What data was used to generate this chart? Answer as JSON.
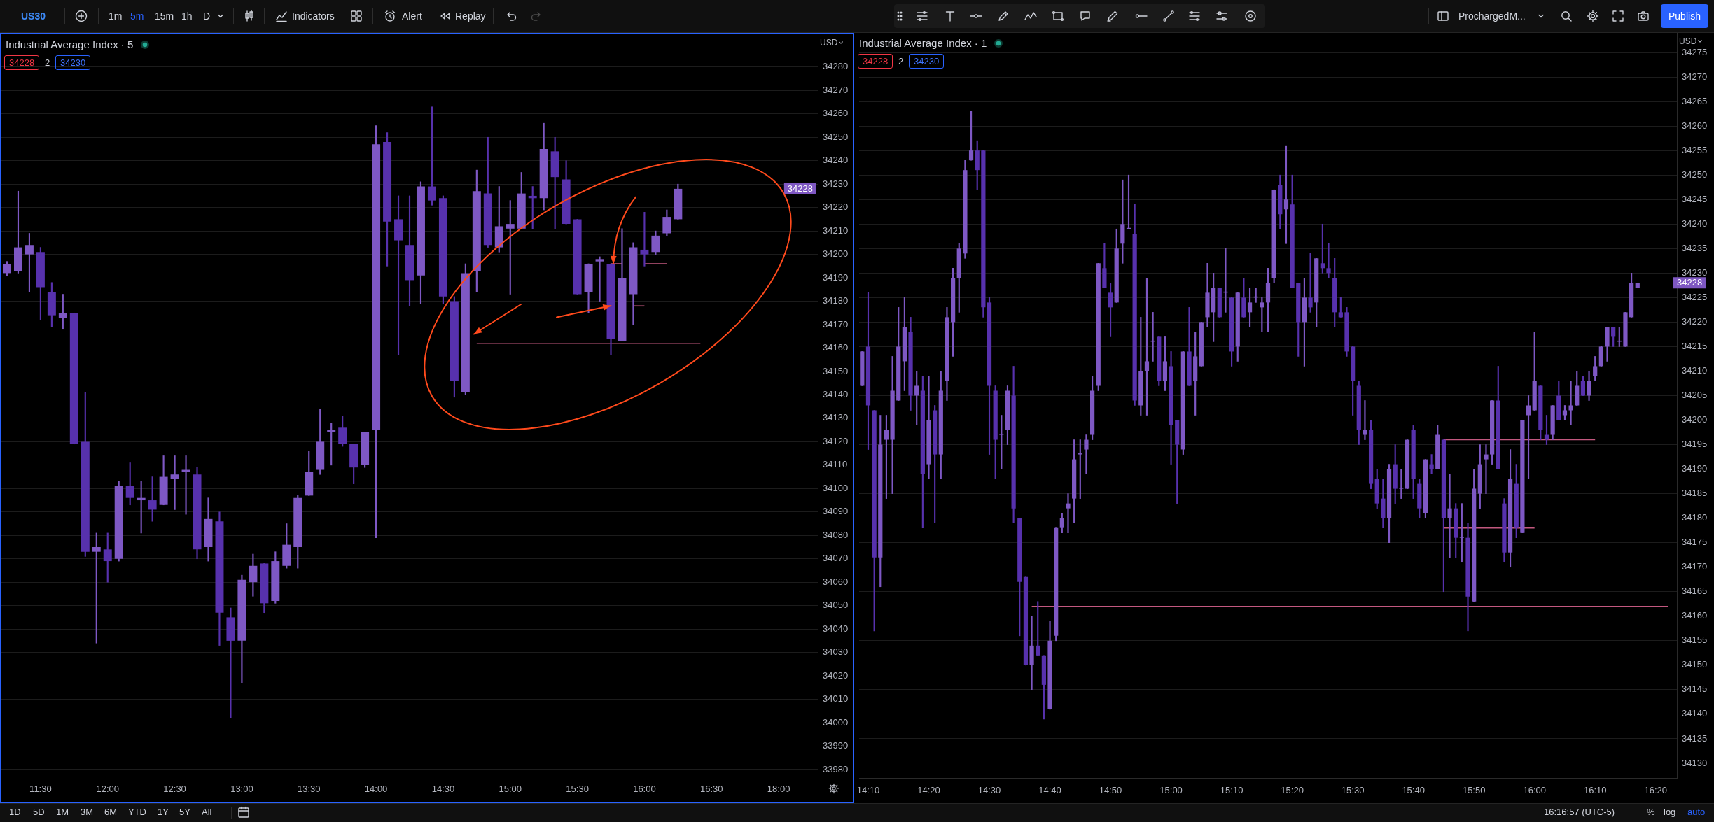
{
  "chart_data": [
    {
      "type": "candlestick",
      "title": "Industrial Average Index · 5",
      "categories": [
        null,
        null,
        null,
        "11:30",
        null,
        null,
        null,
        null,
        null,
        "12:00",
        null,
        null,
        null,
        null,
        null,
        "12:30",
        null,
        null,
        null,
        null,
        null,
        "13:00",
        null,
        null,
        null,
        null,
        null,
        "13:30",
        null,
        null,
        null,
        null,
        null,
        "14:00",
        null,
        null,
        null,
        null,
        null,
        "14:30",
        null,
        null,
        null,
        null,
        null,
        "15:00",
        null,
        null,
        null,
        null,
        null,
        "15:30",
        null,
        null,
        null,
        null,
        null,
        "16:00",
        null,
        null,
        null,
        null,
        null,
        "16:30",
        null,
        null,
        null,
        null,
        null,
        "18:00",
        null,
        null,
        null
      ],
      "ohlc": [
        [
          34192,
          34197,
          34191,
          34196
        ],
        [
          34193,
          34227,
          34192,
          34203
        ],
        [
          34200,
          34209,
          34184,
          34204
        ],
        [
          34201,
          34203,
          34172,
          34186
        ],
        [
          34184,
          34188,
          34169,
          34174
        ],
        [
          34173,
          34183,
          34168,
          34175
        ],
        [
          34175,
          34175,
          34119,
          34119
        ],
        [
          34120,
          34141,
          34071,
          34073
        ],
        [
          34073,
          34081,
          34034,
          34075
        ],
        [
          34074,
          34081,
          34060,
          34069
        ],
        [
          34070,
          34103,
          34069,
          34101
        ],
        [
          34101,
          34111,
          34093,
          34096
        ],
        [
          34095,
          34103,
          34081,
          34096
        ],
        [
          34095,
          34105,
          34086,
          34091
        ],
        [
          34093,
          34114,
          34093,
          34105
        ],
        [
          34104,
          34114,
          34091,
          34106
        ],
        [
          34107,
          34114,
          34089,
          34108
        ],
        [
          34106,
          34109,
          34070,
          34074
        ],
        [
          34075,
          34096,
          34069,
          34087
        ],
        [
          34086,
          34090,
          34033,
          34047
        ],
        [
          34045,
          34049,
          34002,
          34035
        ],
        [
          34035,
          34063,
          34017,
          34061
        ],
        [
          34060,
          34072,
          34054,
          34067
        ],
        [
          34068,
          34068,
          34047,
          34051
        ],
        [
          34052,
          34073,
          34051,
          34069
        ],
        [
          34067,
          34085,
          34066,
          34076
        ],
        [
          34075,
          34097,
          34066,
          34096
        ],
        [
          34097,
          34116,
          34097,
          34107
        ],
        [
          34108,
          34134,
          34106,
          34120
        ],
        [
          34124,
          34128,
          34110,
          34125
        ],
        [
          34126,
          34131,
          34118,
          34119
        ],
        [
          34119,
          34119,
          34102,
          34109
        ],
        [
          34110,
          34124,
          34109,
          34124
        ],
        [
          34125,
          34255,
          34079,
          34247
        ],
        [
          34248,
          34252,
          34195,
          34214
        ],
        [
          34215,
          34225,
          34157,
          34206
        ],
        [
          34204,
          34225,
          34178,
          34189
        ],
        [
          34191,
          34231,
          34179,
          34229
        ],
        [
          34229,
          34263,
          34221,
          34223
        ],
        [
          34224,
          34225,
          34179,
          34182
        ],
        [
          34180,
          34182,
          34139,
          34146
        ],
        [
          34141,
          34196,
          34140,
          34192
        ],
        [
          34193,
          34236,
          34184,
          34227
        ],
        [
          34226,
          34250,
          34203,
          34204
        ],
        [
          34203,
          34229,
          34201,
          34212
        ],
        [
          34211,
          34223,
          34183,
          34213
        ],
        [
          34211,
          34235,
          34211,
          34226
        ],
        [
          34225,
          34229,
          34211,
          34224
        ],
        [
          34224,
          34256,
          34219,
          34245
        ],
        [
          34244,
          34250,
          34211,
          34233
        ],
        [
          34232,
          34240,
          34213,
          34213
        ],
        [
          34215,
          34215,
          34183,
          34183
        ],
        [
          34184,
          34196,
          34175,
          34196
        ],
        [
          34197,
          34199,
          34180,
          34198
        ],
        [
          34196,
          34196,
          34157,
          34164
        ],
        [
          34163,
          34211,
          34163,
          34190
        ],
        [
          34183,
          34205,
          34170,
          34203
        ],
        [
          34202,
          34218,
          34195,
          34200
        ],
        [
          34201,
          34210,
          34200,
          34208
        ],
        [
          34209,
          34219,
          34208,
          34216
        ],
        [
          34215,
          34230,
          34215,
          34228
        ],
        null,
        null,
        null,
        null,
        null,
        null,
        null,
        null,
        null,
        null,
        null,
        null
      ],
      "colors": [
        "#7e58c4",
        "#7e58c4",
        "#7e58c4",
        "#5731ad",
        "#5731ad",
        "#7e58c4",
        "#5731ad",
        "#5731ad",
        "#7e58c4",
        "#5731ad",
        "#7e58c4",
        "#5731ad",
        "#7e58c4",
        "#5731ad",
        "#7e58c4",
        "#7e58c4",
        "#7e58c4",
        "#5731ad",
        "#7e58c4",
        "#5731ad",
        "#5731ad",
        "#7e58c4",
        "#7e58c4",
        "#5731ad",
        "#7e58c4",
        "#7e58c4",
        "#7e58c4",
        "#7e58c4",
        "#7e58c4",
        "#7e58c4",
        "#5731ad",
        "#5731ad",
        "#7e58c4",
        "#7e58c4",
        "#5731ad",
        "#5731ad",
        "#5731ad",
        "#7e58c4",
        "#5731ad",
        "#5731ad",
        "#5731ad",
        "#7e58c4",
        "#7e58c4",
        "#5731ad",
        "#7e58c4",
        "#7e58c4",
        "#7e58c4",
        "#5731ad",
        "#7e58c4",
        "#5731ad",
        "#5731ad",
        "#5731ad",
        "#7e58c4",
        "#7e58c4",
        "#5731ad",
        "#7e58c4",
        "#7e58c4",
        "#5731ad",
        "#7e58c4",
        "#7e58c4",
        "#7e58c4",
        null,
        null,
        null,
        null,
        null,
        null,
        null,
        null,
        null,
        null,
        null,
        null
      ],
      "series": [
        {
          "type": "line",
          "color": "#c2587f",
          "values": [
            null,
            null,
            null,
            null,
            null,
            null,
            null,
            null,
            null,
            null,
            null,
            null,
            null,
            null,
            null,
            null,
            null,
            null,
            null,
            null,
            null,
            null,
            null,
            null,
            null,
            null,
            null,
            null,
            null,
            null,
            null,
            null,
            null,
            null,
            null,
            null,
            null,
            null,
            null,
            null,
            null,
            null,
            34162,
            34162,
            34162,
            34162,
            34162,
            34162,
            34162,
            34162,
            34162,
            34162,
            34162,
            34162,
            34162,
            34162,
            34162,
            34162,
            34162,
            34162,
            34162,
            34162,
            34162,
            null,
            null,
            null,
            null,
            null,
            null,
            null,
            null,
            null,
            null
          ]
        },
        {
          "type": "line",
          "color": "#c2587f",
          "values": [
            null,
            null,
            null,
            null,
            null,
            null,
            null,
            null,
            null,
            null,
            null,
            null,
            null,
            null,
            null,
            null,
            null,
            null,
            null,
            null,
            null,
            null,
            null,
            null,
            null,
            null,
            null,
            null,
            null,
            null,
            null,
            null,
            null,
            null,
            null,
            null,
            null,
            null,
            null,
            null,
            null,
            null,
            null,
            null,
            null,
            null,
            null,
            null,
            null,
            null,
            null,
            null,
            null,
            null,
            34196,
            34196,
            null,
            34196,
            34196,
            34196,
            null,
            null,
            null,
            null,
            null,
            null,
            null,
            null,
            null,
            null,
            null,
            null,
            null
          ]
        },
        {
          "type": "line",
          "color": "#c2587f",
          "values": [
            null,
            null,
            null,
            null,
            null,
            null,
            null,
            null,
            null,
            null,
            null,
            null,
            null,
            null,
            null,
            null,
            null,
            null,
            null,
            null,
            null,
            null,
            null,
            null,
            null,
            null,
            null,
            null,
            null,
            null,
            null,
            null,
            null,
            null,
            null,
            null,
            null,
            null,
            null,
            null,
            null,
            null,
            null,
            null,
            null,
            null,
            null,
            null,
            null,
            null,
            null,
            null,
            null,
            null,
            null,
            null,
            34178,
            34178,
            null,
            null,
            null,
            null,
            null,
            null,
            null,
            null,
            null,
            null,
            null,
            null,
            null,
            null,
            null
          ]
        }
      ],
      "ylim": [
        33977,
        34294
      ],
      "yticks": [
        33980,
        33990,
        34000,
        34010,
        34020,
        34030,
        34040,
        34050,
        34060,
        34070,
        34080,
        34090,
        34100,
        34110,
        34120,
        34130,
        34140,
        34150,
        34160,
        34170,
        34180,
        34190,
        34200,
        34210,
        34220,
        34230,
        34240,
        34250,
        34260,
        34270,
        34280
      ],
      "grid": "y",
      "annotations": [
        "US30",
        "1m",
        "5m",
        "15m",
        "1h",
        "D",
        "Indicators",
        "Alert",
        "Replay",
        "34228",
        "2",
        "34230",
        "USD",
        "34228",
        "1D",
        "5D",
        "1M",
        "3M",
        "6M",
        "YTD",
        "1Y",
        "5Y",
        "All"
      ]
    },
    {
      "type": "candlestick",
      "title": "Industrial Average Index · 1",
      "categories": [
        null,
        "14:10",
        null,
        null,
        null,
        null,
        null,
        null,
        null,
        null,
        null,
        "14:20",
        null,
        null,
        null,
        null,
        null,
        null,
        null,
        null,
        null,
        "14:30",
        null,
        null,
        null,
        null,
        null,
        null,
        null,
        null,
        null,
        "14:40",
        null,
        null,
        null,
        null,
        null,
        null,
        null,
        null,
        null,
        "14:50",
        null,
        null,
        null,
        null,
        null,
        null,
        null,
        null,
        null,
        "15:00",
        null,
        null,
        null,
        null,
        null,
        null,
        null,
        null,
        null,
        "15:10",
        null,
        null,
        null,
        null,
        null,
        null,
        null,
        null,
        null,
        "15:20",
        null,
        null,
        null,
        null,
        null,
        null,
        null,
        null,
        null,
        "15:30",
        null,
        null,
        null,
        null,
        null,
        null,
        null,
        null,
        null,
        "15:40",
        null,
        null,
        null,
        null,
        null,
        null,
        null,
        null,
        null,
        "15:50",
        null,
        null,
        null,
        null,
        null,
        null,
        null,
        null,
        null,
        "16:00",
        null,
        null,
        null,
        null,
        null,
        null,
        null,
        null,
        null,
        "16:10",
        null,
        null,
        null,
        null,
        null,
        null,
        null,
        null,
        null,
        "16:20",
        null,
        null,
        null
      ],
      "ohlc": [
        [
          34207,
          34214,
          34207,
          34214
        ],
        [
          34215,
          34226,
          34194,
          34203
        ],
        [
          34202,
          34202,
          34157,
          34172
        ],
        [
          34172,
          34201,
          34166,
          34195
        ],
        [
          34196,
          34201,
          34184,
          34198
        ],
        [
          34196,
          34213,
          34185,
          34206
        ],
        [
          34204,
          34223,
          34204,
          34215
        ],
        [
          34212,
          34225,
          34206,
          34219
        ],
        [
          34218,
          34221,
          34202,
          34205
        ],
        [
          34205,
          34210,
          34199,
          34207
        ],
        [
          34206,
          34209,
          34178,
          34189
        ],
        [
          34191,
          34209,
          34188,
          34200
        ],
        [
          34202,
          34203,
          34179,
          34193
        ],
        [
          34193,
          34210,
          34188,
          34206
        ],
        [
          34208,
          34223,
          34204,
          34221
        ],
        [
          34220,
          34231,
          34213,
          34229
        ],
        [
          34229,
          34236,
          34222,
          34235
        ],
        [
          34234,
          34253,
          34233,
          34251
        ],
        [
          34253,
          34263,
          34253,
          34255
        ],
        [
          34255,
          34257,
          34247,
          34251
        ],
        [
          34255,
          34255,
          34221,
          34223
        ],
        [
          34224,
          34225,
          34193,
          34207
        ],
        [
          34206,
          34207,
          34188,
          34196
        ],
        [
          34197,
          34201,
          34190,
          34197
        ],
        [
          34198,
          34207,
          34195,
          34206
        ],
        [
          34205,
          34211,
          34179,
          34182
        ],
        [
          34180,
          34180,
          34156,
          34167
        ],
        [
          34168,
          34168,
          34150,
          34150
        ],
        [
          34150,
          34160,
          34145,
          34154
        ],
        [
          34154,
          34163,
          34152,
          34152
        ],
        [
          34152,
          34152,
          34139,
          34146
        ],
        [
          34141,
          34159,
          34141,
          34155
        ],
        [
          34156,
          34178,
          34155,
          34178
        ],
        [
          34178,
          34181,
          34177,
          34180
        ],
        [
          34182,
          34185,
          34177,
          34183
        ],
        [
          34184,
          34196,
          34179,
          34192
        ],
        [
          34193,
          34196,
          34184,
          34193
        ],
        [
          34194,
          34197,
          34189,
          34196
        ],
        [
          34197,
          34209,
          34196,
          34206
        ],
        [
          34207,
          34232,
          34206,
          34232
        ],
        [
          34231,
          34236,
          34227,
          34227
        ],
        [
          34226,
          34228,
          34217,
          34223
        ],
        [
          34224,
          34239,
          34224,
          34235
        ],
        [
          34236,
          34249,
          34232,
          34240
        ],
        [
          34239,
          34250,
          34239,
          34239
        ],
        [
          34238,
          34244,
          34203,
          34204
        ],
        [
          34203,
          34221,
          34201,
          34210
        ],
        [
          34210,
          34229,
          34201,
          34212
        ],
        [
          34216,
          34222,
          34212,
          34216
        ],
        [
          34217,
          34217,
          34207,
          34208
        ],
        [
          34208,
          34217,
          34206,
          34212
        ],
        [
          34211,
          34214,
          34191,
          34199
        ],
        [
          34200,
          34200,
          34183,
          34195
        ],
        [
          34194,
          34214,
          34193,
          34214
        ],
        [
          34214,
          34223,
          34207,
          34207
        ],
        [
          34208,
          34218,
          34201,
          34213
        ],
        [
          34211,
          34220,
          34211,
          34220
        ],
        [
          34221,
          34232,
          34219,
          34226
        ],
        [
          34222,
          34230,
          34216,
          34227
        ],
        [
          34227,
          34227,
          34221,
          34221
        ],
        [
          34226,
          34235,
          34222,
          34226
        ],
        [
          34225,
          34225,
          34211,
          34214
        ],
        [
          34215,
          34226,
          34212,
          34226
        ],
        [
          34225,
          34229,
          34221,
          34221
        ],
        [
          34222,
          34227,
          34219,
          34224
        ],
        [
          34225,
          34227,
          34224,
          34225
        ],
        [
          34223,
          34225,
          34218,
          34224
        ],
        [
          34224,
          34231,
          34218,
          34228
        ],
        [
          34229,
          34247,
          34228,
          34247
        ],
        [
          34248,
          34250,
          34239,
          34242
        ],
        [
          34243,
          34256,
          34236,
          34245
        ],
        [
          34244,
          34250,
          34227,
          34227
        ],
        [
          34228,
          34228,
          34213,
          34220
        ],
        [
          34220,
          34229,
          34211,
          34225
        ],
        [
          34225,
          34234,
          34222,
          34223
        ],
        [
          34224,
          34233,
          34219,
          34233
        ],
        [
          34232,
          34240,
          34230,
          34231
        ],
        [
          34231,
          34236,
          34229,
          34230
        ],
        [
          34229,
          34233,
          34219,
          34222
        ],
        [
          34222,
          34225,
          34221,
          34221
        ],
        [
          34222,
          34223,
          34213,
          34214
        ],
        [
          34215,
          34215,
          34201,
          34208
        ],
        [
          34207,
          34208,
          34195,
          34198
        ],
        [
          34197,
          34204,
          34196,
          34198
        ],
        [
          34198,
          34200,
          34186,
          34187
        ],
        [
          34188,
          34190,
          34182,
          34183
        ],
        [
          34184,
          34188,
          34178,
          34180
        ],
        [
          34180,
          34191,
          34175,
          34190
        ],
        [
          34191,
          34195,
          34183,
          34186
        ],
        [
          34186,
          34190,
          34184,
          34186
        ],
        [
          34186,
          34196,
          34186,
          34196
        ],
        [
          34198,
          34199,
          34184,
          34188
        ],
        [
          34187,
          34188,
          34180,
          34182
        ],
        [
          34181,
          34192,
          34180,
          34192
        ],
        [
          34191,
          34193,
          34189,
          34190
        ],
        [
          34190,
          34199,
          34190,
          34197
        ],
        [
          34196,
          34196,
          34165,
          34180
        ],
        [
          34180,
          34189,
          34172,
          34182
        ],
        [
          34182,
          34183,
          34172,
          34176
        ],
        [
          34176,
          34183,
          34171,
          34176
        ],
        [
          34176,
          34179,
          34157,
          34164
        ],
        [
          34163,
          34190,
          34163,
          34186
        ],
        [
          34185,
          34195,
          34182,
          34191
        ],
        [
          34192,
          34195,
          34185,
          34193
        ],
        [
          34193,
          34204,
          34191,
          34204
        ],
        [
          34204,
          34211,
          34190,
          34190
        ],
        [
          34183,
          34184,
          34171,
          34173
        ],
        [
          34173,
          34194,
          34170,
          34188
        ],
        [
          34187,
          34191,
          34176,
          34178
        ],
        [
          34177,
          34200,
          34177,
          34200
        ],
        [
          34201,
          34205,
          34188,
          34203
        ],
        [
          34202,
          34218,
          34202,
          34208
        ],
        [
          34207,
          34207,
          34196,
          34198
        ],
        [
          34197,
          34201,
          34195,
          34196
        ],
        [
          34197,
          34203,
          34196,
          34203
        ],
        [
          34205,
          34208,
          34200,
          34200
        ],
        [
          34201,
          34203,
          34200,
          34202
        ],
        [
          34202,
          34208,
          34199,
          34203
        ],
        [
          34203,
          34210,
          34203,
          34207
        ],
        [
          34208,
          34209,
          34205,
          34205
        ],
        [
          34205,
          34210,
          34204,
          34208
        ],
        [
          34209,
          34213,
          34208,
          34211
        ],
        [
          34211,
          34215,
          34211,
          34215
        ],
        [
          34215,
          34219,
          34212,
          34219
        ],
        [
          34219,
          34219,
          34215,
          34217
        ],
        [
          34216,
          34219,
          34215,
          34216
        ],
        [
          34215,
          34222,
          34215,
          34222
        ],
        [
          34221,
          34230,
          34221,
          34228
        ],
        [
          34227,
          34228,
          34227,
          34228
        ],
        null,
        null,
        null,
        null,
        null,
        null
      ],
      "colors": [
        "#7e58c4",
        "#5731ad",
        "#5731ad",
        "#7e58c4",
        "#7e58c4",
        "#7e58c4",
        "#7e58c4",
        "#7e58c4",
        "#5731ad",
        "#7e58c4",
        "#5731ad",
        "#7e58c4",
        "#5731ad",
        "#7e58c4",
        "#7e58c4",
        "#7e58c4",
        "#7e58c4",
        "#7e58c4",
        "#7e58c4",
        "#5731ad",
        "#5731ad",
        "#5731ad",
        "#5731ad",
        "#7e58c4",
        "#7e58c4",
        "#5731ad",
        "#5731ad",
        "#5731ad",
        "#7e58c4",
        "#5731ad",
        "#5731ad",
        "#7e58c4",
        "#7e58c4",
        "#7e58c4",
        "#7e58c4",
        "#7e58c4",
        "#7e58c4",
        "#7e58c4",
        "#7e58c4",
        "#7e58c4",
        "#5731ad",
        "#5731ad",
        "#7e58c4",
        "#7e58c4",
        "#7e58c4",
        "#5731ad",
        "#7e58c4",
        "#7e58c4",
        "#7e58c4",
        "#5731ad",
        "#7e58c4",
        "#5731ad",
        "#5731ad",
        "#7e58c4",
        "#5731ad",
        "#7e58c4",
        "#7e58c4",
        "#7e58c4",
        "#7e58c4",
        "#5731ad",
        "#7e58c4",
        "#5731ad",
        "#7e58c4",
        "#5731ad",
        "#7e58c4",
        "#7e58c4",
        "#7e58c4",
        "#7e58c4",
        "#7e58c4",
        "#5731ad",
        "#7e58c4",
        "#5731ad",
        "#5731ad",
        "#7e58c4",
        "#5731ad",
        "#7e58c4",
        "#5731ad",
        "#5731ad",
        "#5731ad",
        "#5731ad",
        "#5731ad",
        "#5731ad",
        "#5731ad",
        "#7e58c4",
        "#5731ad",
        "#5731ad",
        "#5731ad",
        "#7e58c4",
        "#5731ad",
        "#7e58c4",
        "#7e58c4",
        "#5731ad",
        "#5731ad",
        "#7e58c4",
        "#5731ad",
        "#7e58c4",
        "#5731ad",
        "#7e58c4",
        "#5731ad",
        "#7e58c4",
        "#5731ad",
        "#7e58c4",
        "#7e58c4",
        "#7e58c4",
        "#7e58c4",
        "#5731ad",
        "#5731ad",
        "#7e58c4",
        "#5731ad",
        "#7e58c4",
        "#7e58c4",
        "#7e58c4",
        "#5731ad",
        "#5731ad",
        "#7e58c4",
        "#5731ad",
        "#7e58c4",
        "#7e58c4",
        "#7e58c4",
        "#5731ad",
        "#7e58c4",
        "#7e58c4",
        "#7e58c4",
        "#7e58c4",
        "#5731ad",
        "#7e58c4",
        "#7e58c4",
        "#7e58c4",
        "#7e58c4",
        null,
        null,
        null,
        null,
        null,
        null
      ],
      "series": [
        {
          "type": "line",
          "color": "#c2587f",
          "values": [
            null,
            null,
            null,
            null,
            null,
            null,
            null,
            null,
            null,
            null,
            null,
            null,
            null,
            null,
            null,
            null,
            null,
            null,
            null,
            null,
            null,
            null,
            null,
            null,
            null,
            null,
            null,
            null,
            34162,
            34162,
            34162,
            34162,
            34162,
            34162,
            34162,
            34162,
            34162,
            34162,
            34162,
            34162,
            34162,
            34162,
            34162,
            34162,
            34162,
            34162,
            34162,
            34162,
            34162,
            34162,
            34162,
            34162,
            34162,
            34162,
            34162,
            34162,
            34162,
            34162,
            34162,
            34162,
            34162,
            34162,
            34162,
            34162,
            34162,
            34162,
            34162,
            34162,
            34162,
            34162,
            34162,
            34162,
            34162,
            34162,
            34162,
            34162,
            34162,
            34162,
            34162,
            34162,
            34162,
            34162,
            34162,
            34162,
            34162,
            34162,
            34162,
            34162,
            34162,
            34162,
            34162,
            34162,
            34162,
            34162,
            34162,
            34162,
            34162,
            34162,
            34162,
            34162,
            34162,
            34162,
            34162,
            34162,
            34162,
            34162,
            34162,
            34162,
            34162,
            34162,
            34162,
            34162,
            34162,
            34162,
            34162,
            34162,
            34162,
            34162,
            34162,
            34162,
            34162,
            34162,
            34162,
            34162,
            34162,
            34162,
            34162,
            34162,
            34162,
            34162,
            34162,
            34162,
            34162,
            34162,
            null
          ]
        },
        {
          "type": "line",
          "color": "#c2587f",
          "values": [
            null,
            null,
            null,
            null,
            null,
            null,
            null,
            null,
            null,
            null,
            null,
            null,
            null,
            null,
            null,
            null,
            null,
            null,
            null,
            null,
            null,
            null,
            null,
            null,
            null,
            null,
            null,
            null,
            null,
            null,
            null,
            null,
            null,
            null,
            null,
            null,
            null,
            null,
            null,
            null,
            null,
            null,
            null,
            null,
            null,
            null,
            null,
            null,
            null,
            null,
            null,
            null,
            null,
            null,
            null,
            null,
            null,
            null,
            null,
            null,
            null,
            null,
            null,
            null,
            null,
            null,
            null,
            null,
            null,
            null,
            null,
            null,
            null,
            null,
            null,
            null,
            null,
            null,
            null,
            null,
            null,
            null,
            null,
            null,
            null,
            null,
            null,
            null,
            null,
            null,
            null,
            null,
            null,
            null,
            null,
            null,
            34196,
            34196,
            34196,
            34196,
            34196,
            34196,
            34196,
            34196,
            34196,
            34196,
            34196,
            34196,
            34196,
            34196,
            34196,
            34196,
            34196,
            34196,
            34196,
            34196,
            34196,
            34196,
            34196,
            34196,
            34196,
            34196,
            null,
            null,
            null,
            null,
            null,
            null,
            null,
            null,
            null,
            null,
            null,
            null,
            null
          ]
        },
        {
          "type": "line",
          "color": "#c2587f",
          "values": [
            null,
            null,
            null,
            null,
            null,
            null,
            null,
            null,
            null,
            null,
            null,
            null,
            null,
            null,
            null,
            null,
            null,
            null,
            null,
            null,
            null,
            null,
            null,
            null,
            null,
            null,
            null,
            null,
            null,
            null,
            null,
            null,
            null,
            null,
            null,
            null,
            null,
            null,
            null,
            null,
            null,
            null,
            null,
            null,
            null,
            null,
            null,
            null,
            null,
            null,
            null,
            null,
            null,
            null,
            null,
            null,
            null,
            null,
            null,
            null,
            null,
            null,
            null,
            null,
            null,
            null,
            null,
            null,
            null,
            null,
            null,
            null,
            null,
            null,
            null,
            null,
            null,
            null,
            null,
            null,
            null,
            null,
            null,
            null,
            null,
            null,
            null,
            null,
            null,
            null,
            null,
            null,
            null,
            null,
            null,
            null,
            34178,
            34178,
            34178,
            34178,
            34178,
            34178,
            34178,
            34178,
            34178,
            34178,
            34178,
            34178,
            34178,
            34178,
            34178,
            34178,
            null,
            null,
            null,
            null,
            null,
            null,
            null,
            null,
            null,
            null,
            null,
            null,
            null,
            null,
            null,
            null,
            null,
            null,
            null,
            null,
            null,
            null,
            null
          ]
        }
      ],
      "ylim": [
        34127,
        34279
      ],
      "yticks": [
        34130,
        34135,
        34140,
        34145,
        34150,
        34155,
        34160,
        34165,
        34170,
        34175,
        34180,
        34185,
        34190,
        34195,
        34200,
        34205,
        34210,
        34215,
        34220,
        34225,
        34230,
        34235,
        34240,
        34245,
        34250,
        34255,
        34260,
        34265,
        34270,
        34275
      ],
      "grid": "y",
      "annotations": [
        "ProchargedM...",
        "Publish",
        "34228",
        "2",
        "34230",
        "USD",
        "34228",
        "16:16:57 (UTC-5)",
        "%",
        "log",
        "auto"
      ]
    }
  ]
}
